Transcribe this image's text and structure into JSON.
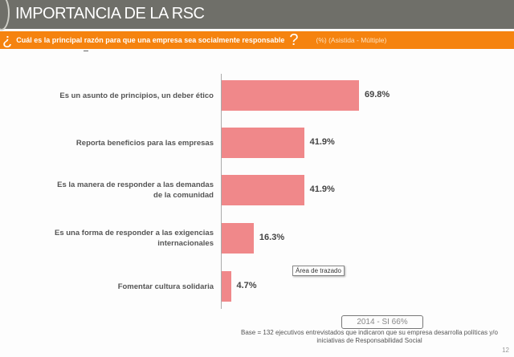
{
  "header": {
    "title": "IMPORTANCIA DE LA RSC"
  },
  "question": {
    "open_mark": "¿",
    "text": "Cuál es la principal razón para que una empresa sea socialmente responsable",
    "close_mark": "?",
    "subtitle": "(%) (Asistida - Múltiple)"
  },
  "chart_data": {
    "type": "bar",
    "orientation": "horizontal",
    "categories": [
      "Es un asunto de principios, un deber ético",
      "Reporta beneficios para las empresas",
      "Es la manera de responder a las demandas de la comunidad",
      "Es una forma de responder a las exigencias internacionales",
      "Fomentar cultura solidaria"
    ],
    "values": [
      69.8,
      41.9,
      41.9,
      16.3,
      4.7
    ],
    "value_labels": [
      "69.8%",
      "41.9%",
      "41.9%",
      "16.3%",
      "4.7%"
    ],
    "color": "#f0888a",
    "xlim": [
      0,
      100
    ]
  },
  "tooltip": "Área de trazado",
  "year_box": "2014 - SI 66%",
  "base_note": "Base = 132 ejecutivos entrevistados que indicaron que su empresa desarrolla políticas y/o iniciativas de Responsabilidad Social",
  "page_number": "12"
}
